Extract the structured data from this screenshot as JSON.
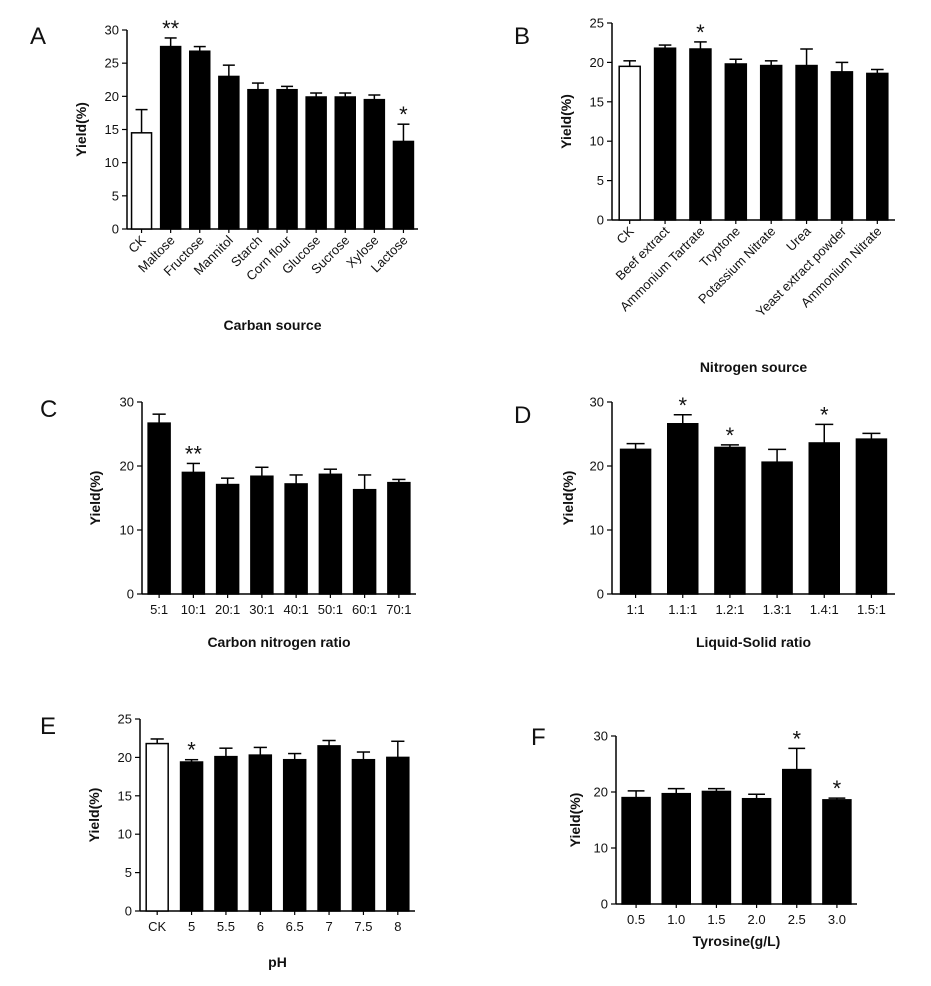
{
  "figure": {
    "colors": {
      "bar": "#000000",
      "control_fill": "#ffffff",
      "axis": "#000000"
    }
  },
  "chart_data": [
    {
      "panel": "A",
      "type": "bar",
      "categories": [
        "CK",
        "Maltose",
        "Fructose",
        "Mannitol",
        "Starch",
        "Corn flour",
        "Glucose",
        "Sucrose",
        "Xylose",
        "Lactose"
      ],
      "values": [
        14.5,
        27.5,
        26.8,
        23.0,
        21.0,
        21.0,
        19.9,
        19.9,
        19.5,
        13.2
      ],
      "errors": [
        3.5,
        1.3,
        0.7,
        1.7,
        1.0,
        0.5,
        0.6,
        0.6,
        0.7,
        2.6
      ],
      "significance": [
        "",
        "**",
        "",
        "",
        "",
        "",
        "",
        "",
        "",
        "*"
      ],
      "control_index": 0,
      "xlabel": "Carban source",
      "ylabel": "Yield(%)",
      "ylim": [
        0,
        30
      ],
      "yticks": [
        0,
        5,
        10,
        15,
        20,
        25,
        30
      ],
      "rotate_labels": true
    },
    {
      "panel": "B",
      "type": "bar",
      "categories": [
        "CK",
        "Beef extract",
        "Ammonium Tartrate",
        "Tryptone",
        "Potassium Nitrate",
        "Urea",
        "Yeast extract powder",
        "Ammonium Nitrate"
      ],
      "values": [
        19.5,
        21.8,
        21.7,
        19.8,
        19.6,
        19.6,
        18.8,
        18.6
      ],
      "errors": [
        0.7,
        0.4,
        0.9,
        0.6,
        0.6,
        2.1,
        1.2,
        0.5
      ],
      "significance": [
        "",
        "",
        "*",
        "",
        "",
        "",
        "",
        ""
      ],
      "control_index": 0,
      "xlabel": "Nitrogen source",
      "ylabel": "Yield(%)",
      "ylim": [
        0,
        25
      ],
      "yticks": [
        0,
        5,
        10,
        15,
        20,
        25
      ],
      "rotate_labels": true
    },
    {
      "panel": "C",
      "type": "bar",
      "categories": [
        "5:1",
        "10:1",
        "20:1",
        "30:1",
        "40:1",
        "50:1",
        "60:1",
        "70:1"
      ],
      "values": [
        26.7,
        19.0,
        17.1,
        18.4,
        17.2,
        18.7,
        16.3,
        17.4
      ],
      "errors": [
        1.4,
        1.4,
        1.0,
        1.4,
        1.4,
        0.8,
        2.3,
        0.5
      ],
      "significance": [
        "",
        "**",
        "",
        "",
        "",
        "",
        "",
        ""
      ],
      "xlabel": "Carbon nitrogen ratio",
      "ylabel": "Yield(%)",
      "ylim": [
        0,
        30
      ],
      "yticks": [
        0,
        10,
        20,
        30
      ],
      "rotate_labels": false
    },
    {
      "panel": "D",
      "type": "bar",
      "categories": [
        "1:1",
        "1.1:1",
        "1.2:1",
        "1.3:1",
        "1.4:1",
        "1.5:1"
      ],
      "values": [
        22.6,
        26.6,
        22.9,
        20.6,
        23.6,
        24.2
      ],
      "errors": [
        0.9,
        1.4,
        0.4,
        2.0,
        2.9,
        0.9
      ],
      "significance": [
        "",
        "*",
        "*",
        "",
        "*",
        ""
      ],
      "xlabel": "Liquid-Solid ratio",
      "ylabel": "Yield(%)",
      "ylim": [
        0,
        30
      ],
      "yticks": [
        0,
        10,
        20,
        30
      ],
      "rotate_labels": false
    },
    {
      "panel": "E",
      "type": "bar",
      "categories": [
        "CK",
        "5",
        "5.5",
        "6",
        "6.5",
        "7",
        "7.5",
        "8"
      ],
      "values": [
        21.8,
        19.4,
        20.1,
        20.3,
        19.7,
        21.5,
        19.7,
        20.0
      ],
      "errors": [
        0.6,
        0.3,
        1.1,
        1.0,
        0.8,
        0.7,
        1.0,
        2.1
      ],
      "significance": [
        "",
        "*",
        "",
        "",
        "",
        "",
        "",
        ""
      ],
      "control_index": 0,
      "xlabel": "pH",
      "ylabel": "Yield(%)",
      "ylim": [
        0,
        25
      ],
      "yticks": [
        0,
        5,
        10,
        15,
        20,
        25
      ],
      "rotate_labels": false
    },
    {
      "panel": "F",
      "type": "bar",
      "categories": [
        "0.5",
        "1.0",
        "1.5",
        "2.0",
        "2.5",
        "3.0"
      ],
      "values": [
        19.0,
        19.7,
        20.1,
        18.8,
        24.0,
        18.6
      ],
      "errors": [
        1.2,
        0.9,
        0.5,
        0.8,
        3.8,
        0.3
      ],
      "significance": [
        "",
        "",
        "",
        "",
        "*",
        "*"
      ],
      "xlabel": "Tyrosine(g/L)",
      "ylabel": "Yield(%)",
      "ylim": [
        0,
        30
      ],
      "yticks": [
        0,
        10,
        20,
        30
      ],
      "rotate_labels": false
    }
  ]
}
